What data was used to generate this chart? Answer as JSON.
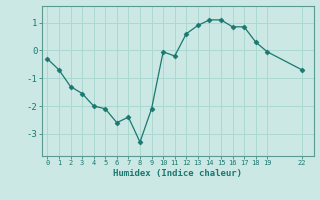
{
  "x": [
    0,
    1,
    2,
    3,
    4,
    5,
    6,
    7,
    8,
    9,
    10,
    11,
    12,
    13,
    14,
    15,
    16,
    17,
    18,
    19,
    22
  ],
  "y": [
    -0.3,
    -0.7,
    -1.3,
    -1.55,
    -2.0,
    -2.1,
    -2.6,
    -2.4,
    -3.3,
    -2.1,
    -0.05,
    -0.2,
    0.6,
    0.9,
    1.1,
    1.1,
    0.85,
    0.85,
    0.3,
    -0.05,
    -0.7
  ],
  "line_color": "#1a7870",
  "marker": "D",
  "marker_size": 2.5,
  "xlabel": "Humidex (Indice chaleur)",
  "xlim": [
    -0.5,
    23
  ],
  "ylim": [
    -3.8,
    1.6
  ],
  "xticks": [
    0,
    1,
    2,
    3,
    4,
    5,
    6,
    7,
    8,
    9,
    10,
    11,
    12,
    13,
    14,
    15,
    16,
    17,
    18,
    19,
    22
  ],
  "yticks": [
    -3,
    -2,
    -1,
    0,
    1
  ],
  "grid_color": "#aad8d0",
  "bg_color": "#cce8e4",
  "spine_color": "#5a9a90"
}
